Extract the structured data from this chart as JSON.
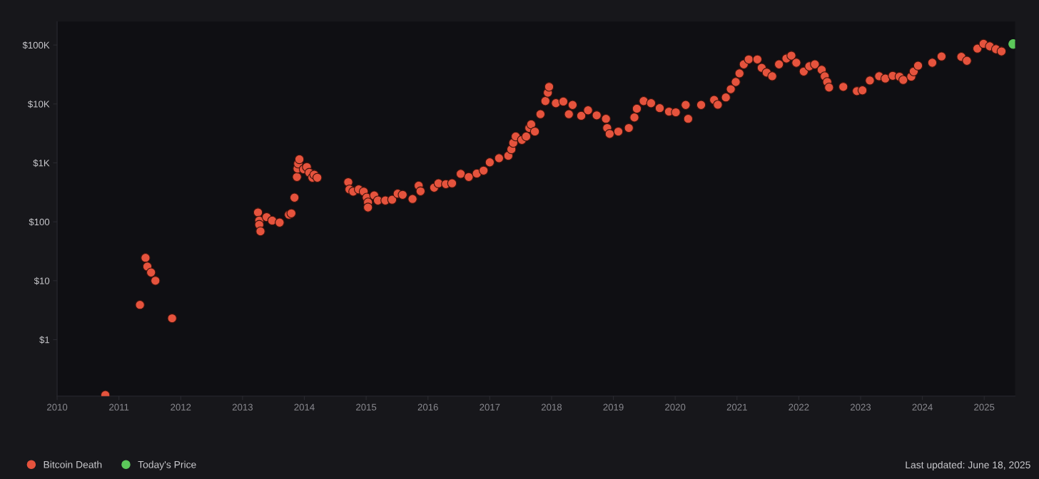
{
  "chart_data": {
    "type": "scatter",
    "series": [
      {
        "name": "Bitcoin Death",
        "color": "#e5533d",
        "x": [
          2010.78,
          2011.34,
          2011.43,
          2011.46,
          2011.52,
          2011.59,
          2011.86,
          2013.25,
          2013.27,
          2013.27,
          2013.29,
          2013.39,
          2013.48,
          2013.6,
          2013.75,
          2013.79,
          2013.84,
          2013.88,
          2013.89,
          2013.9,
          2013.92,
          2013.99,
          2014.04,
          2014.08,
          2014.13,
          2014.16,
          2014.21,
          2014.71,
          2014.73,
          2014.79,
          2014.88,
          2014.96,
          2015.01,
          2015.03,
          2015.03,
          2015.13,
          2015.19,
          2015.31,
          2015.42,
          2015.51,
          2015.59,
          2015.75,
          2015.85,
          2015.88,
          2016.1,
          2016.17,
          2016.29,
          2016.39,
          2016.53,
          2016.66,
          2016.79,
          2016.9,
          2017.0,
          2017.15,
          2017.3,
          2017.35,
          2017.38,
          2017.42,
          2017.52,
          2017.59,
          2017.64,
          2017.67,
          2017.73,
          2017.82,
          2017.9,
          2017.94,
          2017.96,
          2018.07,
          2018.19,
          2018.28,
          2018.34,
          2018.48,
          2018.59,
          2018.73,
          2018.88,
          2018.9,
          2018.94,
          2019.08,
          2019.25,
          2019.34,
          2019.38,
          2019.49,
          2019.61,
          2019.75,
          2019.9,
          2020.01,
          2020.17,
          2020.21,
          2020.42,
          2020.63,
          2020.69,
          2020.82,
          2020.9,
          2020.98,
          2021.04,
          2021.11,
          2021.19,
          2021.33,
          2021.4,
          2021.48,
          2021.57,
          2021.68,
          2021.8,
          2021.88,
          2021.96,
          2022.08,
          2022.17,
          2022.26,
          2022.37,
          2022.42,
          2022.46,
          2022.49,
          2022.72,
          2022.94,
          2023.03,
          2023.15,
          2023.3,
          2023.4,
          2023.52,
          2023.63,
          2023.69,
          2023.82,
          2023.86,
          2023.93,
          2024.16,
          2024.31,
          2024.63,
          2024.72,
          2024.89,
          2024.99,
          2025.09,
          2025.19,
          2025.28
        ],
        "values": [
          0.115,
          3.9,
          24.5,
          17.4,
          13.8,
          10,
          2.3,
          144,
          105,
          89,
          69,
          120,
          105,
          97,
          132,
          139,
          257,
          575,
          800,
          970,
          1150,
          780,
          850,
          680,
          560,
          630,
          560,
          470,
          355,
          325,
          355,
          325,
          257,
          213,
          175,
          280,
          230,
          230,
          237,
          300,
          287,
          244,
          410,
          330,
          380,
          450,
          435,
          450,
          650,
          575,
          660,
          740,
          1020,
          1200,
          1320,
          1700,
          2180,
          2800,
          2450,
          2800,
          3900,
          4500,
          3400,
          6700,
          11200,
          15500,
          19500,
          10300,
          11000,
          6700,
          9600,
          6300,
          7800,
          6400,
          5600,
          3900,
          3100,
          3400,
          3900,
          5900,
          8300,
          11200,
          10300,
          8500,
          7400,
          7200,
          9600,
          5600,
          9600,
          11700,
          9700,
          12900,
          17800,
          23600,
          33000,
          47000,
          57000,
          57000,
          41000,
          34000,
          29500,
          47000,
          59000,
          66000,
          50000,
          35500,
          43500,
          47000,
          38000,
          29500,
          23600,
          19000,
          19500,
          16500,
          17000,
          25000,
          29500,
          27000,
          30000,
          29000,
          25500,
          29000,
          35500,
          44500,
          50000,
          64000,
          63000,
          54000,
          87000,
          105000,
          95000,
          85000,
          78000
        ]
      },
      {
        "name": "Today's Price",
        "color": "#5cc85a",
        "x": [
          2025.47
        ],
        "values": [
          104000
        ]
      }
    ],
    "log": true,
    "xlim": [
      2010,
      2025.5
    ],
    "xticks": [
      2010,
      2011,
      2012,
      2013,
      2014,
      2015,
      2016,
      2017,
      2018,
      2019,
      2020,
      2021,
      2022,
      2023,
      2024,
      2025
    ],
    "ylim": [
      0.11,
      250000
    ],
    "yticks": [
      {
        "value": 1,
        "label": "$1"
      },
      {
        "value": 10,
        "label": "$10"
      },
      {
        "value": 100,
        "label": "$100"
      },
      {
        "value": 1000,
        "label": "$1K"
      },
      {
        "value": 10000,
        "label": "$10K"
      },
      {
        "value": 100000,
        "label": "$100K"
      }
    ],
    "grid": false,
    "marker": "circle",
    "legend": "bottom left",
    "annotations": [
      "Last updated: June 18, 2025"
    ]
  }
}
